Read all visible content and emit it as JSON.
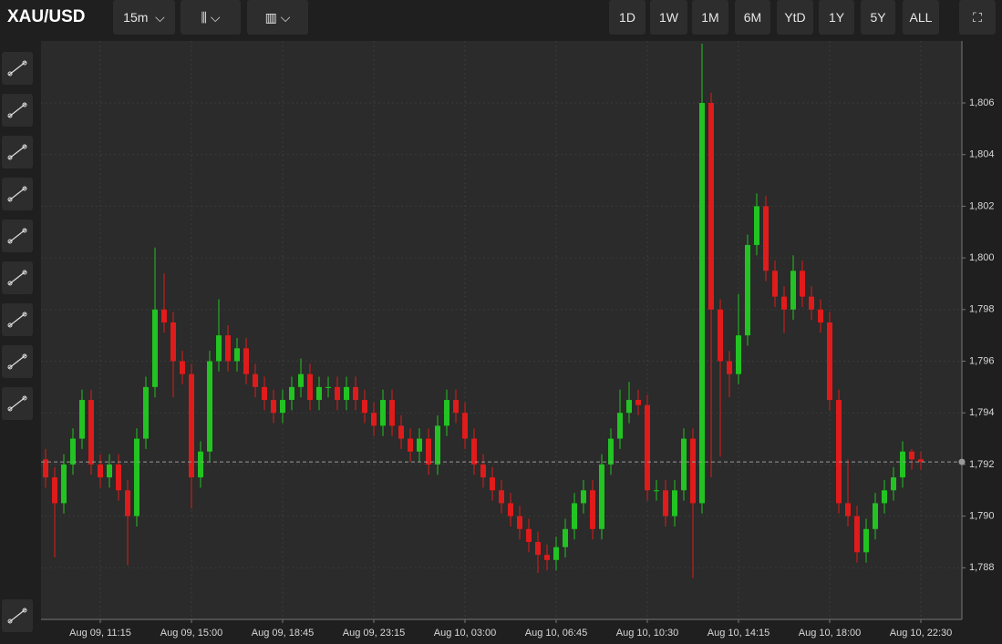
{
  "toolbar": {
    "symbol": "XAU/USD",
    "interval": "15m",
    "ranges": [
      "1D",
      "1W",
      "1M",
      "6M",
      "YtD",
      "1Y",
      "5Y",
      "ALL"
    ]
  },
  "chart_data": {
    "type": "candlestick",
    "categories": [
      null,
      null,
      null,
      null,
      null,
      null,
      "Aug 09, 11:15",
      null,
      null,
      null,
      null,
      null,
      null,
      null,
      null,
      null,
      "Aug 09, 15:00",
      null,
      null,
      null,
      null,
      null,
      null,
      null,
      null,
      null,
      "Aug 09, 18:45",
      null,
      null,
      null,
      null,
      null,
      null,
      null,
      null,
      null,
      "Aug 09, 23:15",
      null,
      null,
      null,
      null,
      null,
      null,
      null,
      null,
      null,
      "Aug 10, 03:00",
      null,
      null,
      null,
      null,
      null,
      null,
      null,
      null,
      null,
      "Aug 10, 06:45",
      null,
      null,
      null,
      null,
      null,
      null,
      null,
      null,
      null,
      "Aug 10, 10:30",
      null,
      null,
      null,
      null,
      null,
      null,
      null,
      null,
      null,
      "Aug 10, 14:15",
      null,
      null,
      null,
      null,
      null,
      null,
      null,
      null,
      null,
      "Aug 10, 18:00",
      null,
      null,
      null,
      null,
      null,
      null,
      null,
      null,
      null,
      "Aug 10, 22:30"
    ],
    "open": [
      1792.2,
      1791.5,
      1790.5,
      1792,
      1793,
      1794.5,
      1792,
      1791.5,
      1792,
      1791,
      1790,
      1793,
      1795,
      1798,
      1797.5,
      1796,
      1795.5,
      1791.5,
      1792.5,
      1796,
      1797,
      1796,
      1796.5,
      1795.5,
      1795,
      1794.5,
      1794,
      1794.5,
      1795,
      1795.5,
      1794.5,
      1795,
      1795,
      1794.5,
      1795,
      1794.5,
      1794,
      1793.5,
      1794.5,
      1793.5,
      1793,
      1792.5,
      1793,
      1792,
      1793.5,
      1794.5,
      1794,
      1793,
      1792,
      1791.5,
      1791,
      1790.5,
      1790,
      1789.5,
      1789,
      1788.5,
      1788.3,
      1788.8,
      1789.5,
      1790.5,
      1791,
      1789.5,
      1792,
      1793,
      1794,
      1794.5,
      1794.3,
      1791,
      1791,
      1790,
      1791,
      1793,
      1790.5,
      1806,
      1798,
      1796,
      1795.5,
      1797,
      1800.5,
      1802,
      1799.5,
      1798.5,
      1798,
      1799.5,
      1798.5,
      1798,
      1797.5,
      1794.5,
      1790.5,
      1790,
      1788.6,
      1789.5,
      1790.5,
      1791,
      1791.5,
      1792.5,
      1792.2
    ],
    "high": [
      1792.6,
      1791.9,
      1792.4,
      1793.4,
      1794.9,
      1794.9,
      1792.4,
      1792.4,
      1792.4,
      1791.4,
      1793.4,
      1795.4,
      1800.4,
      1799.4,
      1797.9,
      1796.4,
      1795.9,
      1792.9,
      1796.4,
      1798.4,
      1797.4,
      1796.9,
      1796.9,
      1795.9,
      1795.4,
      1794.9,
      1794.9,
      1795.4,
      1796.1,
      1795.9,
      1795.4,
      1795.4,
      1795.4,
      1795.4,
      1795.4,
      1794.9,
      1794.4,
      1794.9,
      1794.9,
      1793.9,
      1793.4,
      1793.4,
      1793.4,
      1793.9,
      1794.9,
      1794.9,
      1794.4,
      1793.4,
      1792.4,
      1791.9,
      1791.4,
      1790.9,
      1790.4,
      1789.9,
      1789.4,
      1788.9,
      1789.2,
      1789.9,
      1790.9,
      1791.4,
      1791.4,
      1792.4,
      1793.4,
      1794.9,
      1795.2,
      1794.9,
      1794.7,
      1791.4,
      1791.4,
      1791.4,
      1793.4,
      1793.4,
      1808.3,
      1806.4,
      1798.4,
      1796.4,
      1798.6,
      1800.9,
      1802.5,
      1802.4,
      1799.9,
      1798.9,
      1800.1,
      1799.9,
      1798.9,
      1798.4,
      1797.9,
      1794.9,
      1792.2,
      1790.4,
      1789.9,
      1790.9,
      1791.4,
      1791.9,
      1792.9,
      1792.6,
      1792.5
    ],
    "low": [
      1791.1,
      1788.4,
      1790.1,
      1791.6,
      1792.6,
      1791.6,
      1791.1,
      1791.1,
      1790.6,
      1788.1,
      1789.6,
      1792.6,
      1794.6,
      1797.1,
      1794.6,
      1795.1,
      1790.3,
      1791.1,
      1792.1,
      1795.6,
      1795.6,
      1795.6,
      1795.1,
      1794.6,
      1794.1,
      1793.6,
      1793.6,
      1794.1,
      1794.6,
      1794.1,
      1794.1,
      1794.6,
      1794.1,
      1794.1,
      1794.1,
      1793.6,
      1793.1,
      1793.1,
      1793.1,
      1792.6,
      1792.1,
      1792.1,
      1791.6,
      1791.6,
      1793.1,
      1793.6,
      1792.6,
      1791.6,
      1791.1,
      1790.6,
      1790.1,
      1789.6,
      1789.1,
      1788.6,
      1787.8,
      1787.9,
      1787.9,
      1788.4,
      1789.1,
      1790.1,
      1789.1,
      1789.1,
      1791.6,
      1792.6,
      1793.6,
      1793.9,
      1790.6,
      1790.6,
      1789.6,
      1789.6,
      1790.6,
      1787.6,
      1790.1,
      1791.5,
      1792.3,
      1794.6,
      1795.1,
      1796.6,
      1800.1,
      1799.1,
      1798.1,
      1797.1,
      1797.6,
      1798.1,
      1797.6,
      1797.1,
      1794.1,
      1790.1,
      1789.6,
      1788.2,
      1788.2,
      1789.1,
      1790.1,
      1790.6,
      1791.1,
      1791.8,
      1791.8
    ],
    "close": [
      1791.5,
      1790.5,
      1792,
      1793,
      1794.5,
      1792,
      1791.5,
      1792,
      1791,
      1790,
      1793,
      1795,
      1798,
      1797.5,
      1796,
      1795.5,
      1791.5,
      1792.5,
      1796,
      1797,
      1796,
      1796.5,
      1795.5,
      1795,
      1794.5,
      1794,
      1794.5,
      1795,
      1795.5,
      1794.5,
      1795,
      1795,
      1794.5,
      1795,
      1794.5,
      1794,
      1793.5,
      1794.5,
      1793.5,
      1793,
      1792.5,
      1793,
      1792,
      1793.5,
      1794.5,
      1794,
      1793,
      1792,
      1791.5,
      1791,
      1790.5,
      1790,
      1789.5,
      1789,
      1788.5,
      1788.3,
      1788.8,
      1789.5,
      1790.5,
      1791,
      1789.5,
      1792,
      1793,
      1794,
      1794.5,
      1794.3,
      1791,
      1791,
      1790,
      1791,
      1793,
      1790.5,
      1806,
      1798,
      1796,
      1795.5,
      1797,
      1800.5,
      1802,
      1799.5,
      1798.5,
      1798,
      1799.5,
      1798.5,
      1798,
      1797.5,
      1794.5,
      1790.5,
      1790,
      1788.6,
      1789.5,
      1790.5,
      1791,
      1791.5,
      1792.5,
      1792.2,
      1792.1
    ],
    "up_color": "#22c322",
    "down_color": "#e01b1b",
    "ylim": [
      1786,
      1808.4
    ],
    "yticks": [
      {
        "value": 1788,
        "label": "1,788"
      },
      {
        "value": 1790,
        "label": "1,790"
      },
      {
        "value": 1792,
        "label": "1,792"
      },
      {
        "value": 1794,
        "label": "1,794"
      },
      {
        "value": 1796,
        "label": "1,796"
      },
      {
        "value": 1798,
        "label": "1,798"
      },
      {
        "value": 1800,
        "label": "1,800"
      },
      {
        "value": 1802,
        "label": "1,802"
      },
      {
        "value": 1804,
        "label": "1,804"
      },
      {
        "value": 1806,
        "label": "1,806"
      }
    ],
    "last_price": 1792.1,
    "grid": true
  }
}
